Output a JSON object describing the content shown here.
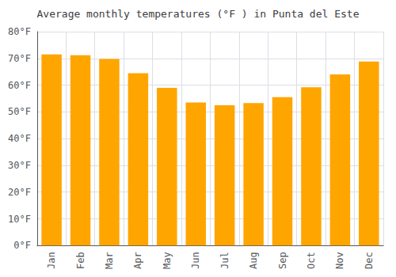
{
  "chart_data": {
    "type": "bar",
    "title": "Average monthly temperatures (°F ) in Punta del Este",
    "categories": [
      "Jan",
      "Feb",
      "Mar",
      "Apr",
      "May",
      "Jun",
      "Jul",
      "Aug",
      "Sep",
      "Oct",
      "Nov",
      "Dec"
    ],
    "values": [
      71.5,
      71.2,
      69.8,
      64.5,
      59.0,
      53.5,
      52.5,
      53.3,
      55.5,
      59.2,
      64.0,
      68.8
    ],
    "color": "#FFA500",
    "ylim": [
      0,
      80
    ],
    "yticks": [
      {
        "value": 0,
        "label": "0°F"
      },
      {
        "value": 10,
        "label": "10°F"
      },
      {
        "value": 20,
        "label": "20°F"
      },
      {
        "value": 30,
        "label": "30°F"
      },
      {
        "value": 40,
        "label": "40°F"
      },
      {
        "value": 50,
        "label": "50°F"
      },
      {
        "value": 60,
        "label": "60°F"
      },
      {
        "value": 70,
        "label": "70°F"
      },
      {
        "value": 80,
        "label": "80°F"
      }
    ],
    "grid": true
  }
}
